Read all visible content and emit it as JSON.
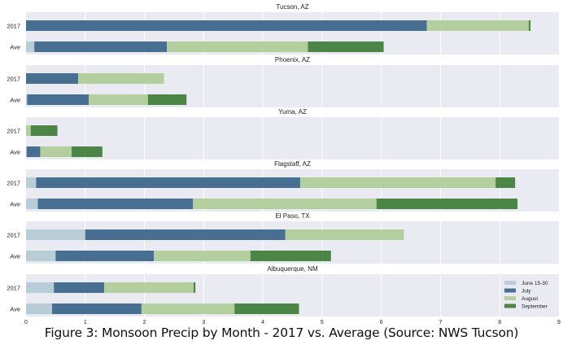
{
  "figure_caption": "Figure 3: Monsoon Precip by Month - 2017 vs. Average (Source: NWS Tucson)",
  "colors": {
    "June 15-30": "#b9cdd9",
    "July": "#466f91",
    "August": "#b3cf9e",
    "September": "#4c8646",
    "panel_bg": "#eaeaf2",
    "grid": "#ffffff"
  },
  "chart_data": {
    "type": "bar",
    "orientation": "horizontal",
    "stacked": true,
    "xlim": [
      0,
      9
    ],
    "x_ticks": [
      "0",
      "1",
      "2",
      "3",
      "4",
      "5",
      "6",
      "7",
      "8",
      "9"
    ],
    "grid": true,
    "legend_placement": "bottom-right",
    "legend": [
      "June 15-30",
      "July",
      "August",
      "September"
    ],
    "panels": [
      {
        "title": "Tucson, AZ",
        "categories": [
          "2017",
          "Ave"
        ],
        "series": [
          {
            "name": "June 15-30",
            "values": [
              0,
              0.14
            ]
          },
          {
            "name": "July",
            "values": [
              6.77,
              2.24
            ]
          },
          {
            "name": "August",
            "values": [
              1.72,
              2.38
            ]
          },
          {
            "name": "September",
            "values": [
              0.03,
              1.28
            ]
          }
        ]
      },
      {
        "title": "Phoenix, AZ",
        "categories": [
          "2017",
          "Ave"
        ],
        "series": [
          {
            "name": "June 15-30",
            "values": [
              0,
              0.02
            ]
          },
          {
            "name": "July",
            "values": [
              0.88,
              1.04
            ]
          },
          {
            "name": "August",
            "values": [
              1.45,
              1.0
            ]
          },
          {
            "name": "September",
            "values": [
              0,
              0.65
            ]
          }
        ]
      },
      {
        "title": "Yuma, AZ",
        "categories": [
          "2017",
          "Ave"
        ],
        "series": [
          {
            "name": "June 15-30",
            "values": [
              0,
              0.01
            ]
          },
          {
            "name": "July",
            "values": [
              0,
              0.23
            ]
          },
          {
            "name": "August",
            "values": [
              0.08,
              0.53
            ]
          },
          {
            "name": "September",
            "values": [
              0.45,
              0.52
            ]
          }
        ]
      },
      {
        "title": "Flagstaff, AZ",
        "categories": [
          "2017",
          "Ave"
        ],
        "series": [
          {
            "name": "June 15-30",
            "values": [
              0.17,
              0.2
            ]
          },
          {
            "name": "July",
            "values": [
              4.46,
              2.62
            ]
          },
          {
            "name": "August",
            "values": [
              3.3,
              3.1
            ]
          },
          {
            "name": "September",
            "values": [
              0.33,
              2.38
            ]
          }
        ]
      },
      {
        "title": "El Paso, TX",
        "categories": [
          "2017",
          "Ave"
        ],
        "series": [
          {
            "name": "June 15-30",
            "values": [
              1.0,
              0.5
            ]
          },
          {
            "name": "July",
            "values": [
              3.38,
              1.66
            ]
          },
          {
            "name": "August",
            "values": [
              2.0,
              1.63
            ]
          },
          {
            "name": "September",
            "values": [
              0,
              1.36
            ]
          }
        ]
      },
      {
        "title": "Albuquerque, NM",
        "categories": [
          "2017",
          "Ave"
        ],
        "series": [
          {
            "name": "June 15-30",
            "values": [
              0.47,
              0.44
            ]
          },
          {
            "name": "July",
            "values": [
              0.85,
              1.51
            ]
          },
          {
            "name": "August",
            "values": [
              1.51,
              1.57
            ]
          },
          {
            "name": "September",
            "values": [
              0.03,
              1.09
            ]
          }
        ]
      }
    ]
  }
}
